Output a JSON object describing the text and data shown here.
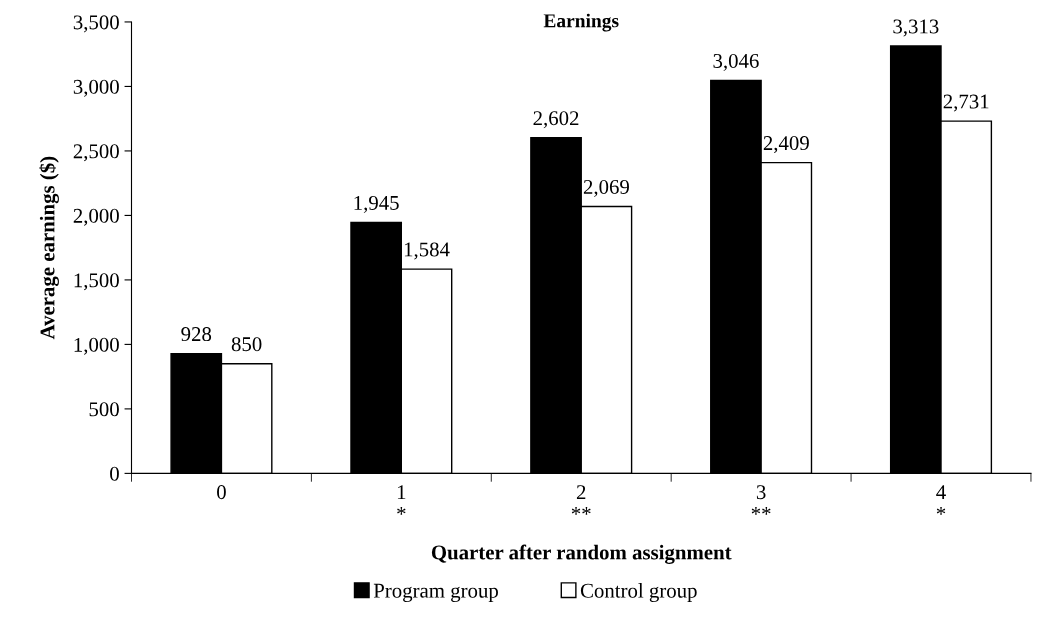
{
  "chart_data": {
    "type": "bar",
    "title": "Earnings",
    "xlabel": "Quarter after random assignment",
    "ylabel": "Average earnings ($)",
    "categories": [
      "0",
      "1\n*",
      "2\n**",
      "3\n**",
      "4\n*"
    ],
    "series": [
      {
        "name": "Program group",
        "color": "#000000",
        "values": [
          928,
          1945,
          2602,
          3046,
          3313
        ],
        "value_labels": [
          "928",
          "1,945",
          "2,602",
          "3,046",
          "3,313"
        ]
      },
      {
        "name": "Control group",
        "color": "#ffffff",
        "values": [
          850,
          1584,
          2069,
          2409,
          2731
        ],
        "value_labels": [
          "850",
          "1,584",
          "2,069",
          "2,409",
          "2,731"
        ]
      }
    ],
    "ylim": [
      0,
      3500
    ],
    "yticks": [
      0,
      500,
      {
        "value": 1000,
        "label": "1,000"
      },
      {
        "value": 1500,
        "label": "1,500"
      },
      {
        "value": 2000,
        "label": "2,000"
      },
      {
        "value": 2500,
        "label": "2,500"
      },
      {
        "value": 3000,
        "label": "3,000"
      },
      {
        "value": 3500,
        "label": "3,500"
      }
    ],
    "grid": false,
    "legend": "bottom"
  }
}
